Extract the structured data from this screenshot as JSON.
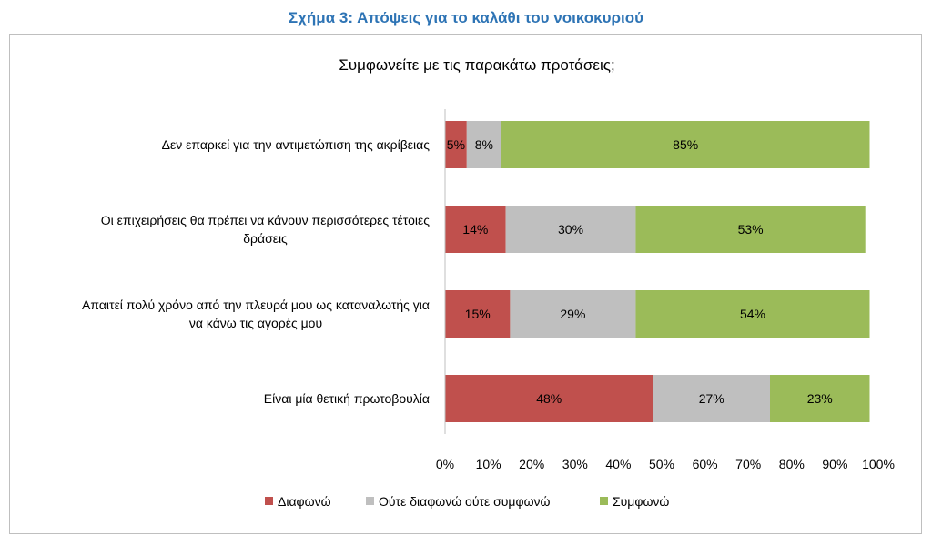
{
  "figure_title": "Σχήμα 3: Απόψεις για το καλάθι του νοικοκυριού",
  "chart_data": {
    "type": "bar",
    "orientation": "horizontal",
    "stacked": "percent",
    "title": "Συμφωνείτε με τις παρακάτω προτάσεις;",
    "categories": [
      [
        "Δεν επαρκεί για την αντιμετώπιση της ακρίβειας"
      ],
      [
        "Οι επιχειρήσεις θα πρέπει να κάνουν περισσότερες τέτοιες",
        "δράσεις"
      ],
      [
        "Απαιτεί πολύ χρόνο από την πλευρά μου ως καταναλωτής για",
        "να κάνω τις αγορές μου"
      ],
      [
        "Είναι μία θετική πρωτοβουλία"
      ]
    ],
    "series": [
      {
        "name": "Διαφωνώ",
        "color": "#c0504d",
        "values": [
          5,
          14,
          15,
          48
        ],
        "labels": [
          "5%",
          "14%",
          "15%",
          "48%"
        ]
      },
      {
        "name": "Ούτε διαφωνώ ούτε συμφωνώ",
        "color": "#bfbfbf",
        "values": [
          8,
          30,
          29,
          27
        ],
        "labels": [
          "8%",
          "30%",
          "29%",
          "27%"
        ]
      },
      {
        "name": "Συμφωνώ",
        "color": "#9bbb59",
        "values": [
          85,
          53,
          54,
          23
        ],
        "labels": [
          "85%",
          "53%",
          "54%",
          "23%"
        ]
      }
    ],
    "xticks": [
      "0%",
      "10%",
      "20%",
      "30%",
      "40%",
      "50%",
      "60%",
      "70%",
      "80%",
      "90%",
      "100%"
    ],
    "xlim": [
      0,
      100
    ],
    "grid": false,
    "legend": "bottom"
  }
}
